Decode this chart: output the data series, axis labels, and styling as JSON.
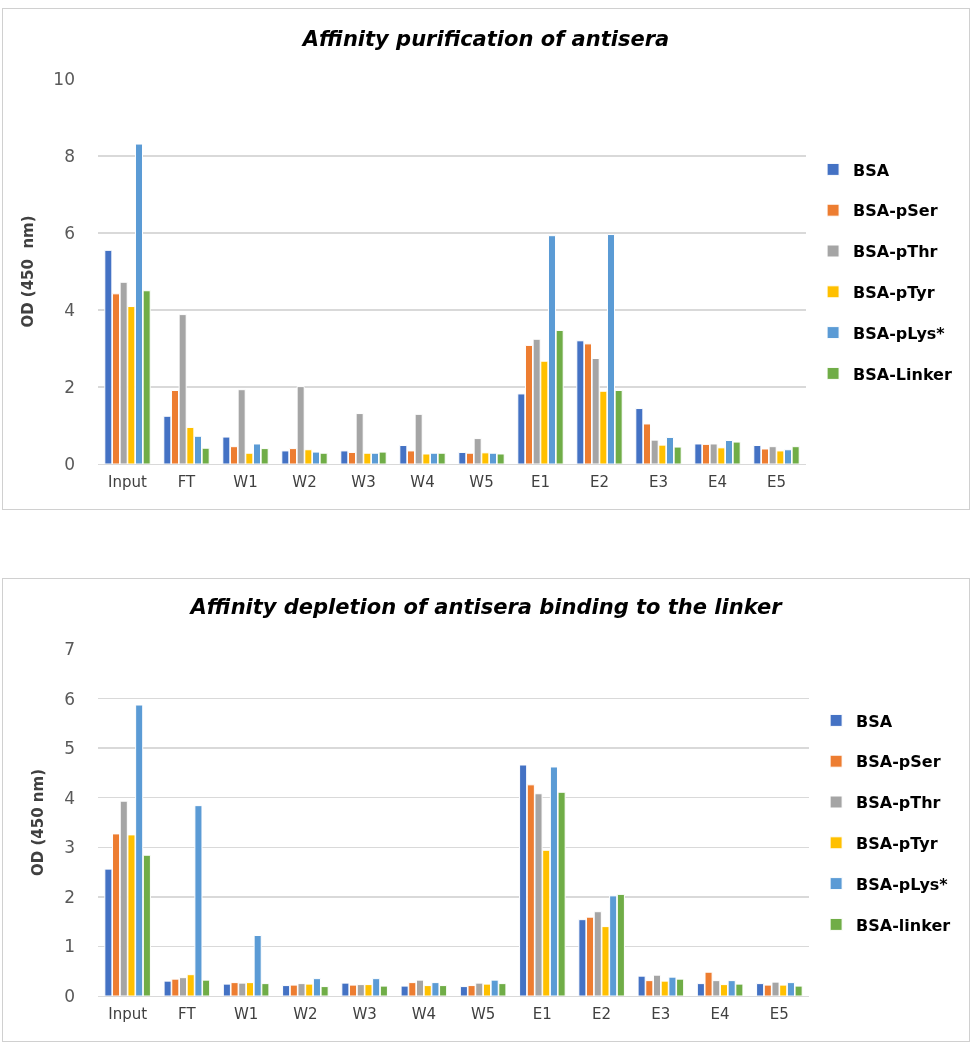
{
  "chart_data": [
    {
      "type": "bar",
      "title": "Affinity purification of antisera",
      "ylabel": "OD (450  nm)",
      "categories": [
        "Input",
        "FT",
        "W1",
        "W2",
        "W3",
        "W4",
        "W5",
        "E1",
        "E2",
        "E3",
        "E4",
        "E5"
      ],
      "ylim": [
        0,
        10
      ],
      "yticks": [
        0,
        2,
        4,
        6,
        8,
        10
      ],
      "grid": "y",
      "legend": "right",
      "series": [
        {
          "name": "BSA",
          "color": "#4472c4",
          "values": [
            5.55,
            1.24,
            0.7,
            0.34,
            0.34,
            0.48,
            0.3,
            1.82,
            3.2,
            1.44,
            0.52,
            0.48
          ]
        },
        {
          "name": "BSA-pSer",
          "color": "#ed7d31",
          "values": [
            4.42,
            1.91,
            0.45,
            0.4,
            0.3,
            0.34,
            0.28,
            3.08,
            3.12,
            1.04,
            0.51,
            0.39
          ]
        },
        {
          "name": "BSA-pThr",
          "color": "#a5a5a5",
          "values": [
            4.72,
            3.88,
            1.93,
            2.01,
            1.31,
            1.29,
            0.66,
            3.24,
            2.74,
            0.62,
            0.52,
            0.45
          ]
        },
        {
          "name": "BSA-pTyr",
          "color": "#ffc000",
          "values": [
            4.09,
            0.95,
            0.28,
            0.37,
            0.28,
            0.26,
            0.29,
            2.67,
            1.89,
            0.49,
            0.42,
            0.34
          ]
        },
        {
          "name": "BSA-pLys*",
          "color": "#5b9bd5",
          "values": [
            8.31,
            0.72,
            0.52,
            0.31,
            0.28,
            0.28,
            0.28,
            5.93,
            5.96,
            0.69,
            0.61,
            0.37
          ]
        },
        {
          "name": "BSA-Linker",
          "color": "#70ad47",
          "values": [
            4.5,
            0.41,
            0.4,
            0.28,
            0.31,
            0.28,
            0.26,
            3.47,
            1.91,
            0.44,
            0.57,
            0.45
          ]
        }
      ]
    },
    {
      "type": "bar",
      "title": "Affinity depletion of antisera binding to the linker",
      "ylabel": "OD (450 nm)",
      "categories": [
        "Input",
        "FT",
        "W1",
        "W2",
        "W3",
        "W4",
        "W5",
        "E1",
        "E2",
        "E3",
        "E4",
        "E5"
      ],
      "ylim": [
        0,
        7
      ],
      "yticks": [
        0,
        1,
        2,
        3,
        4,
        5,
        6,
        7
      ],
      "grid": "y",
      "legend": "right",
      "series": [
        {
          "name": "BSA",
          "color": "#4472c4",
          "values": [
            2.56,
            0.3,
            0.24,
            0.21,
            0.26,
            0.2,
            0.19,
            4.66,
            1.54,
            0.4,
            0.25,
            0.25
          ]
        },
        {
          "name": "BSA-pSer",
          "color": "#ed7d31",
          "values": [
            3.27,
            0.34,
            0.27,
            0.22,
            0.22,
            0.27,
            0.21,
            4.26,
            1.59,
            0.31,
            0.48,
            0.22
          ]
        },
        {
          "name": "BSA-pThr",
          "color": "#a5a5a5",
          "values": [
            3.93,
            0.37,
            0.26,
            0.25,
            0.23,
            0.32,
            0.26,
            4.08,
            1.7,
            0.42,
            0.31,
            0.28
          ]
        },
        {
          "name": "BSA-pTyr",
          "color": "#ffc000",
          "values": [
            3.25,
            0.43,
            0.27,
            0.24,
            0.23,
            0.21,
            0.24,
            2.94,
            1.4,
            0.3,
            0.23,
            0.22
          ]
        },
        {
          "name": "BSA-pLys*",
          "color": "#5b9bd5",
          "values": [
            5.87,
            3.84,
            1.22,
            0.35,
            0.35,
            0.27,
            0.32,
            4.62,
            2.02,
            0.38,
            0.31,
            0.27
          ]
        },
        {
          "name": "BSA-linker",
          "color": "#70ad47",
          "values": [
            2.84,
            0.32,
            0.25,
            0.19,
            0.2,
            0.21,
            0.25,
            4.11,
            2.05,
            0.34,
            0.24,
            0.2
          ]
        }
      ]
    }
  ]
}
